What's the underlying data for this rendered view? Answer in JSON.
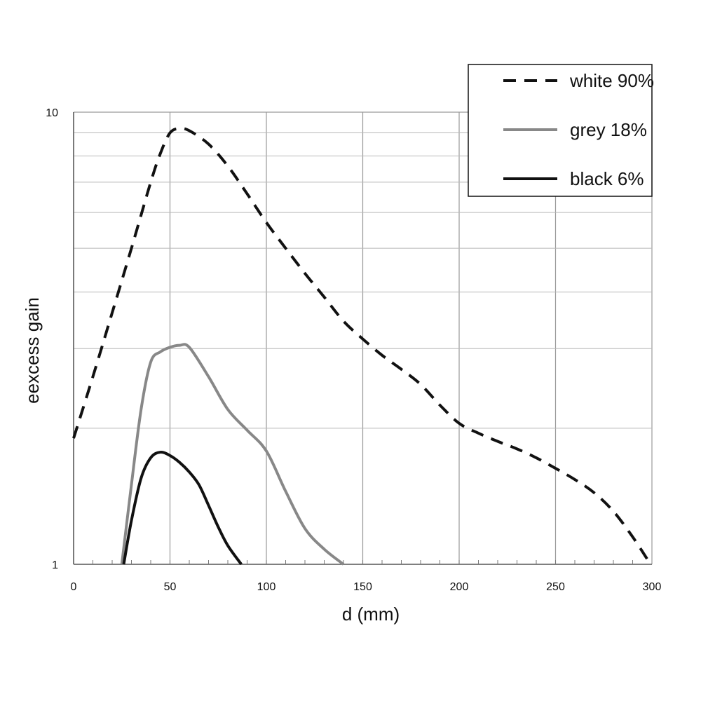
{
  "chart_data": {
    "type": "line",
    "title": "",
    "xlabel": "d (mm)",
    "ylabel": "eexcess gain",
    "xlim": [
      0,
      300
    ],
    "ylim": [
      1,
      10
    ],
    "yscale": "log",
    "xticks": [
      0,
      50,
      100,
      150,
      200,
      250,
      300
    ],
    "yticks": [
      1,
      10
    ],
    "ytick_labels": [
      "1",
      "10"
    ],
    "grid": true,
    "legend_position": "top-right",
    "series": [
      {
        "name": "white 90%",
        "style": "dashed",
        "color": "#111111",
        "x": [
          0,
          10,
          20,
          30,
          40,
          45,
          50,
          55,
          60,
          70,
          80,
          90,
          100,
          110,
          120,
          130,
          140,
          150,
          160,
          170,
          180,
          190,
          200,
          210,
          220,
          230,
          240,
          250,
          260,
          270,
          280,
          290,
          298
        ],
        "y": [
          1.9,
          2.6,
          3.6,
          5.0,
          7.0,
          8.1,
          9.0,
          9.2,
          9.1,
          8.5,
          7.6,
          6.6,
          5.7,
          5.0,
          4.4,
          3.9,
          3.45,
          3.15,
          2.9,
          2.7,
          2.5,
          2.25,
          2.05,
          1.95,
          1.87,
          1.8,
          1.72,
          1.63,
          1.54,
          1.44,
          1.31,
          1.15,
          1.02
        ]
      },
      {
        "name": "grey 18%",
        "style": "solid",
        "color": "#888888",
        "x": [
          25,
          30,
          35,
          40,
          45,
          50,
          55,
          60,
          70,
          80,
          90,
          100,
          110,
          120,
          130,
          140
        ],
        "y": [
          1.0,
          1.5,
          2.2,
          2.8,
          2.95,
          3.02,
          3.05,
          3.02,
          2.6,
          2.2,
          1.98,
          1.78,
          1.45,
          1.2,
          1.08,
          1.0
        ]
      },
      {
        "name": "black 6%",
        "style": "solid",
        "color": "#111111",
        "x": [
          26,
          30,
          35,
          40,
          45,
          50,
          55,
          60,
          65,
          70,
          75,
          80,
          87
        ],
        "y": [
          1.0,
          1.25,
          1.55,
          1.72,
          1.77,
          1.74,
          1.68,
          1.6,
          1.5,
          1.35,
          1.21,
          1.1,
          1.0
        ]
      }
    ]
  }
}
